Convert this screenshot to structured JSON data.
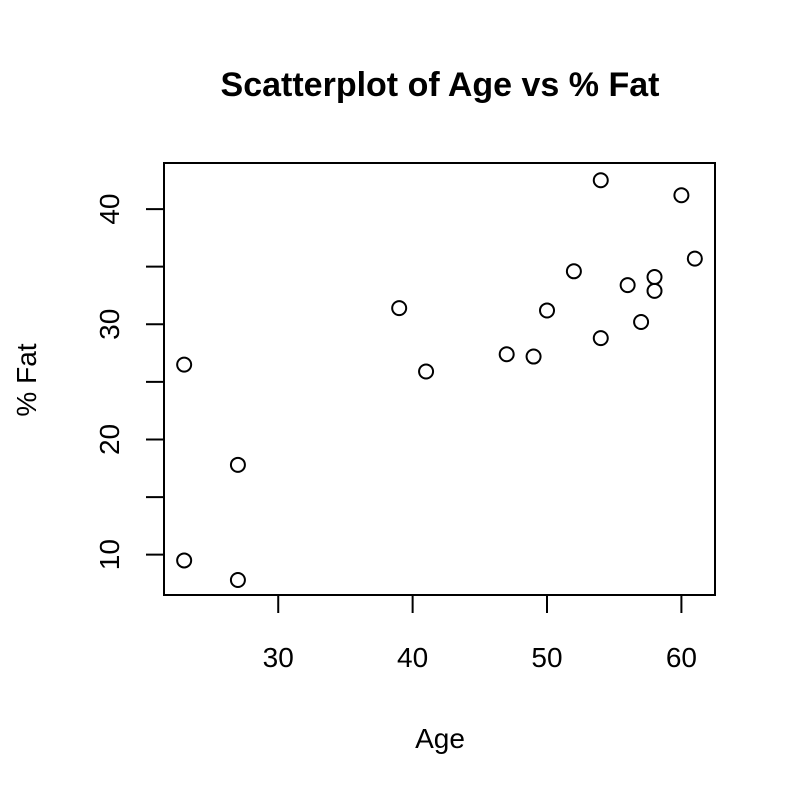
{
  "chart_data": {
    "type": "scatter",
    "title": "Scatterplot of Age vs % Fat",
    "xlabel": "Age",
    "ylabel": "% Fat",
    "xlim": [
      21.5,
      62.5
    ],
    "ylim": [
      6.5,
      44.0
    ],
    "xticks": [
      30,
      40,
      50,
      60
    ],
    "yticks": [
      10,
      15,
      20,
      25,
      30,
      35,
      40
    ],
    "ytick_labels": [
      "10",
      "",
      "20",
      "",
      "30",
      "",
      "40"
    ],
    "grid": false,
    "legend": "none",
    "marker": "open-circle",
    "color": "#000000",
    "points": [
      {
        "x": 23,
        "y": 9.5
      },
      {
        "x": 23,
        "y": 26.5
      },
      {
        "x": 27,
        "y": 7.8
      },
      {
        "x": 27,
        "y": 17.8
      },
      {
        "x": 39,
        "y": 31.4
      },
      {
        "x": 41,
        "y": 25.9
      },
      {
        "x": 47,
        "y": 27.4
      },
      {
        "x": 49,
        "y": 27.2
      },
      {
        "x": 50,
        "y": 31.2
      },
      {
        "x": 52,
        "y": 34.6
      },
      {
        "x": 54,
        "y": 42.5
      },
      {
        "x": 54,
        "y": 28.8
      },
      {
        "x": 56,
        "y": 33.4
      },
      {
        "x": 57,
        "y": 30.2
      },
      {
        "x": 58,
        "y": 34.1
      },
      {
        "x": 58,
        "y": 32.9
      },
      {
        "x": 60,
        "y": 41.2
      },
      {
        "x": 61,
        "y": 35.7
      }
    ]
  }
}
